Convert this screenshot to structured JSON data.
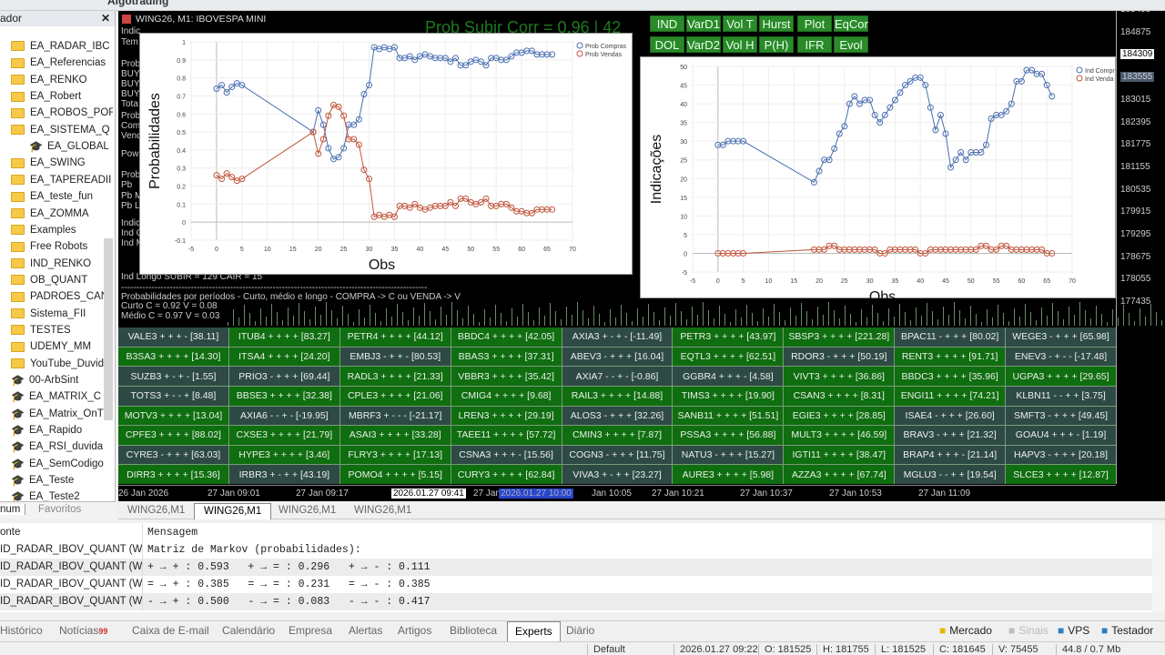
{
  "toolbar": {
    "algotrading": "Algotrading"
  },
  "navigator": {
    "title": "ador",
    "close": "✕",
    "items": [
      {
        "label": "EA_RADAR_IBC",
        "icon": "folder"
      },
      {
        "label": "EA_Referencias",
        "icon": "folder"
      },
      {
        "label": "EA_RENKO",
        "icon": "folder"
      },
      {
        "label": "EA_Robert",
        "icon": "folder"
      },
      {
        "label": "EA_ROBOS_POF",
        "icon": "folder"
      },
      {
        "label": "EA_SISTEMA_Q",
        "icon": "folder"
      },
      {
        "label": "EA_GLOBAL",
        "icon": "expert",
        "indent": true
      },
      {
        "label": "EA_SWING",
        "icon": "folder"
      },
      {
        "label": "EA_TAPEREADII",
        "icon": "folder"
      },
      {
        "label": "EA_teste_fun",
        "icon": "folder"
      },
      {
        "label": "EA_ZOMMA",
        "icon": "folder"
      },
      {
        "label": "Examples",
        "icon": "folder"
      },
      {
        "label": "Free Robots",
        "icon": "folder"
      },
      {
        "label": "IND_RENKO",
        "icon": "folder"
      },
      {
        "label": "OB_QUANT",
        "icon": "folder"
      },
      {
        "label": "PADROES_CAN",
        "icon": "folder"
      },
      {
        "label": "Sistema_FII",
        "icon": "folder"
      },
      {
        "label": "TESTES",
        "icon": "folder"
      },
      {
        "label": "UDEMY_MM",
        "icon": "folder"
      },
      {
        "label": "YouTube_Duvid",
        "icon": "folder"
      },
      {
        "label": "00-ArbSint",
        "icon": "expert"
      },
      {
        "label": "EA_MATRIX_C",
        "icon": "expert"
      },
      {
        "label": "EA_Matrix_OnTi",
        "icon": "expert"
      },
      {
        "label": "EA_Rapido",
        "icon": "expert"
      },
      {
        "label": "EA_RSI_duvida",
        "icon": "expert"
      },
      {
        "label": "EA_SemCodigo",
        "icon": "expert"
      },
      {
        "label": "EA_Teste",
        "icon": "expert"
      },
      {
        "label": "EA_Teste2",
        "icon": "expert"
      }
    ],
    "tabs": [
      "num",
      "Favoritos"
    ]
  },
  "chart": {
    "title": "WING26, M1:  IBOVESPA MINI",
    "big_text": "Prob Subir Corr = 0.96 | 42",
    "buttons": [
      [
        "IND",
        "VarD1",
        "Vol T",
        "Hurst",
        "Plot",
        "EqCor"
      ],
      [
        "DOL",
        "VarD2",
        "Vol H",
        "P(H)",
        "IFR",
        "Evol"
      ]
    ],
    "overlay_fragments": [
      "Indic",
      "Tem",
      "Prob",
      "BUY",
      "BUY",
      "BUY",
      "Tota",
      "Prob",
      "Comp",
      "Vend",
      "Pow",
      "Prob",
      "Pb",
      "Pb M",
      "Pb L",
      "Indic",
      "Ind C",
      "Ind M"
    ],
    "overlay_lines": [
      "Ind Longo SUBIR = 129 CAIR = 15",
      "-----------------------------------------------------------------------------------------------------",
      "Probabilidades por períodos - Curto, médio e longo - COMPRA -> C ou VENDA -> V",
      "Curto C = 0.92 V = 0.08",
      "Médio C = 0.97 V = 0.03"
    ],
    "price_ticks": [
      "185495",
      "184875",
      "184309",
      "183555",
      "183015",
      "182395",
      "181775",
      "181155",
      "180535",
      "179915",
      "179295",
      "178675",
      "178055",
      "177435"
    ],
    "time_labels": [
      "26 Jan 2026",
      "27 Jan 09:01",
      "27 Jan 09:17",
      "2026.01.27 09:41",
      "27 Jan",
      "2026.01.27 10:00",
      "Jan 10:05",
      "27 Jan 10:21",
      "27 Jan 10:37",
      "27 Jan 10:53",
      "27 Jan 11:09"
    ],
    "tabs": [
      "WING26,M1",
      "WING26,M1",
      "WING26,M1",
      "WING26,M1"
    ],
    "active_tab": 1
  },
  "stocks": [
    [
      "VALE3 + + + - [38.11]",
      "ITUB4 + + + + [83.27]",
      "PETR4 + + + + [44.12]",
      "BBDC4 + + + + [42.05]",
      "AXIA3 + - + - [-11.49]",
      "PETR3 + + + + [43.97]",
      "SBSP3 + + + + [221.28]",
      "BPAC11 - + + + [80.02]",
      "WEGE3 - + + + [65.98]"
    ],
    [
      "B3SA3 + + + + [14.30]",
      "ITSA4 + + + + [24.20]",
      "EMBJ3 - + + - [80.53]",
      "BBAS3 + + + + [37.31]",
      "ABEV3 - + + + [16.04]",
      "EQTL3 + + + + [62.51]",
      "RDOR3 - + + + [50.19]",
      "RENT3 + + + + [91.71]",
      "ENEV3 - + - - [-17.48]"
    ],
    [
      "SUZB3 + - + - [1.55]",
      "PRIO3 - + + + [69.44]",
      "RADL3 + + + + [21.33]",
      "VBBR3 + + + + [35.42]",
      "AXIA7 - - + - [-0.86]",
      "GGBR4 + + + - [4.58]",
      "VIVT3 + + + + [36.86]",
      "BBDC3 + + + + [35.96]",
      "UGPA3 + + + + [29.65]"
    ],
    [
      "TOTS3 + - - + [8.48]",
      "BBSE3 + + + + [32.38]",
      "CPLE3 + + + + [21.06]",
      "CMIG4 + + + + [9.68]",
      "RAIL3 + + + + [14.88]",
      "TIMS3 + + + + [19.90]",
      "CSAN3 + + + + [8.31]",
      "ENGI11 + + + + [74.21]",
      "KLBN11 - - + + [3.75]"
    ],
    [
      "MOTV3 + + + + [13.04]",
      "AXIA6 - - + - [-19.95]",
      "MBRF3 + - - - [-21.17]",
      "LREN3 + + + + [29.19]",
      "ALOS3 - + + + [32.26]",
      "SANB11 + + + + [51.51]",
      "EGIE3 + + + + [28.85]",
      "ISAE4 - + + + [26.60]",
      "SMFT3 - + + + [49.45]"
    ],
    [
      "CPFE3 + + + + [88.02]",
      "CXSE3 + + + + [21.79]",
      "ASAI3 + + + + [33.28]",
      "TAEE11 + + + + [57.72]",
      "CMIN3 + + + + [7.87]",
      "PSSA3 + + + + [56.88]",
      "MULT3 + + + + [46.59]",
      "BRAV3 - + + + [21.32]",
      "GOAU4 + + + - [1.19]"
    ],
    [
      "CYRE3 - + + + [63.03]",
      "HYPE3 + + + + [3.46]",
      "FLRY3 + + + + [17.13]",
      "CSNA3 + + + - [15.56]",
      "COGN3 - + + + [11.75]",
      "NATU3 - + + + [15.27]",
      "IGTI11 + + + + [38.47]",
      "BRAP4 + + + - [21.14]",
      "HAPV3 - + + + [20.18]"
    ],
    [
      "DIRR3 + + + + [15.36]",
      "IRBR3 + - + + [43.19]",
      "POMO4 + + + + [5.15]",
      "CURY3 + + + + [62.84]",
      "VIVA3 + - + + [23.27]",
      "AURE3 + + + + [5.98]",
      "AZZA3 + + + + [67.74]",
      "MGLU3 - - + + [19.54]",
      "SLCE3 + + + + [12.87]"
    ]
  ],
  "stock_colors": {
    "all_plus": "#0f6e0f",
    "mixed": "#2e4a45"
  },
  "chart_data": [
    {
      "type": "line",
      "xlabel": "Obs",
      "ylabel": "Probabilidades",
      "xlim": [
        -5,
        70
      ],
      "ylim": [
        -0.1,
        1
      ],
      "xticks": [
        "-5",
        "0",
        "5",
        "10",
        "15",
        "20",
        "25",
        "30",
        "35",
        "40",
        "45",
        "50",
        "55",
        "60",
        "65",
        "70"
      ],
      "yticks": [
        "-0.1",
        "0",
        "0.1",
        "0.2",
        "0.3",
        "0.4",
        "0.5",
        "0.6",
        "0.7",
        "0.8",
        "0.9",
        "1"
      ],
      "legend": "top-right",
      "grid": true,
      "x": [
        0,
        1,
        2,
        3,
        4,
        5,
        19,
        20,
        21,
        22,
        23,
        24,
        25,
        26,
        27,
        28,
        29,
        30,
        31,
        32,
        33,
        34,
        35,
        36,
        37,
        38,
        39,
        40,
        41,
        42,
        43,
        44,
        45,
        46,
        47,
        48,
        49,
        50,
        51,
        52,
        53,
        54,
        55,
        56,
        57,
        58,
        59,
        60,
        61,
        62,
        63,
        64,
        65,
        66
      ],
      "series": [
        {
          "name": "Prob Compras",
          "color": "#4a6fb0",
          "values": [
            0.74,
            0.76,
            0.72,
            0.75,
            0.77,
            0.76,
            0.5,
            0.62,
            0.54,
            0.41,
            0.35,
            0.36,
            0.41,
            0.54,
            0.54,
            0.57,
            0.71,
            0.76,
            0.97,
            0.96,
            0.97,
            0.96,
            0.97,
            0.91,
            0.91,
            0.92,
            0.9,
            0.92,
            0.93,
            0.92,
            0.91,
            0.91,
            0.91,
            0.89,
            0.91,
            0.87,
            0.87,
            0.89,
            0.9,
            0.89,
            0.87,
            0.91,
            0.91,
            0.9,
            0.9,
            0.92,
            0.94,
            0.94,
            0.95,
            0.95,
            0.93,
            0.93,
            0.93,
            0.93
          ]
        },
        {
          "name": "Prob Vendas",
          "color": "#c0543a",
          "values": [
            0.26,
            0.24,
            0.27,
            0.25,
            0.23,
            0.24,
            0.5,
            0.38,
            0.46,
            0.59,
            0.65,
            0.64,
            0.59,
            0.46,
            0.46,
            0.43,
            0.29,
            0.24,
            0.03,
            0.04,
            0.03,
            0.04,
            0.03,
            0.09,
            0.09,
            0.08,
            0.1,
            0.08,
            0.07,
            0.08,
            0.09,
            0.09,
            0.09,
            0.11,
            0.09,
            0.13,
            0.13,
            0.11,
            0.1,
            0.11,
            0.13,
            0.09,
            0.09,
            0.1,
            0.1,
            0.08,
            0.06,
            0.06,
            0.05,
            0.05,
            0.07,
            0.07,
            0.07,
            0.07
          ]
        }
      ]
    },
    {
      "type": "line",
      "xlabel": "Obs",
      "ylabel": "Indicações",
      "xlim": [
        -5,
        70
      ],
      "ylim": [
        -5,
        50
      ],
      "xticks": [
        "-5",
        "0",
        "5",
        "10",
        "15",
        "20",
        "25",
        "30",
        "35",
        "40",
        "45",
        "50",
        "55",
        "60",
        "65",
        "70"
      ],
      "yticks": [
        "-5",
        "0",
        "5",
        "10",
        "15",
        "20",
        "25",
        "30",
        "35",
        "40",
        "45",
        "50"
      ],
      "legend": "top-right",
      "grid": true,
      "x": [
        0,
        1,
        2,
        3,
        4,
        5,
        19,
        20,
        21,
        22,
        23,
        24,
        25,
        26,
        27,
        28,
        29,
        30,
        31,
        32,
        33,
        34,
        35,
        36,
        37,
        38,
        39,
        40,
        41,
        42,
        43,
        44,
        45,
        46,
        47,
        48,
        49,
        50,
        51,
        52,
        53,
        54,
        55,
        56,
        57,
        58,
        59,
        60,
        61,
        62,
        63,
        64,
        65,
        66
      ],
      "series": [
        {
          "name": "Ind Compr",
          "color": "#4a6fb0",
          "values": [
            29,
            29,
            30,
            30,
            30,
            30,
            19,
            22,
            25,
            25,
            28,
            32,
            34,
            40,
            42,
            40,
            41,
            41,
            37,
            35,
            37,
            39,
            41,
            43,
            45,
            46,
            47,
            47,
            45,
            39,
            33,
            37,
            32,
            23,
            25,
            27,
            25,
            27,
            27,
            27,
            29,
            36,
            37,
            37,
            38,
            40,
            46,
            46,
            49,
            49,
            48,
            48,
            45,
            42
          ]
        },
        {
          "name": "Ind Venda",
          "color": "#c0543a",
          "values": [
            0,
            0,
            0,
            0,
            0,
            0,
            1,
            1,
            1,
            2,
            2,
            1,
            1,
            1,
            1,
            1,
            1,
            1,
            1,
            0,
            0,
            1,
            1,
            1,
            1,
            1,
            1,
            0,
            0,
            1,
            1,
            1,
            1,
            1,
            1,
            1,
            1,
            1,
            1,
            2,
            2,
            1,
            1,
            2,
            2,
            1,
            1,
            1,
            1,
            1,
            1,
            1,
            0,
            0
          ]
        }
      ]
    }
  ],
  "toolbox": {
    "headers": [
      "onte",
      "Mensagem"
    ],
    "rows": [
      [
        "",
        "Matriz de Markov (probabilidades):"
      ],
      [
        "ID_RADAR_IBOV_QUANT (WI...",
        "+ → + : 0.593   + → = : 0.296   + → - : 0.111"
      ],
      [
        "ID_RADAR_IBOV_QUANT (WI...",
        "= → + : 0.385   = → = : 0.231   = → - : 0.385"
      ],
      [
        "ID_RADAR_IBOV_QUANT (WI...",
        "- → + : 0.500   - → = : 0.083   - → - : 0.417"
      ]
    ],
    "first_row_source": "ID_RADAR_IBOV_QUANT (WI..."
  },
  "bottom_tabs": [
    "Histórico",
    "Notícias",
    "Caixa de E-mail",
    "Calendário",
    "Empresa",
    "Alertas",
    "Artigos",
    "Biblioteca",
    "Experts",
    "Diário"
  ],
  "news_badge": "99",
  "right_links": [
    "Mercado",
    "Sinais",
    "VPS",
    "Testador"
  ],
  "status": [
    "Default",
    "2026.01.27 09:22",
    "O: 181525",
    "H: 181755",
    "L: 181525",
    "C: 181645",
    "V: 75455",
    "44.8 / 0.7 Mb"
  ]
}
